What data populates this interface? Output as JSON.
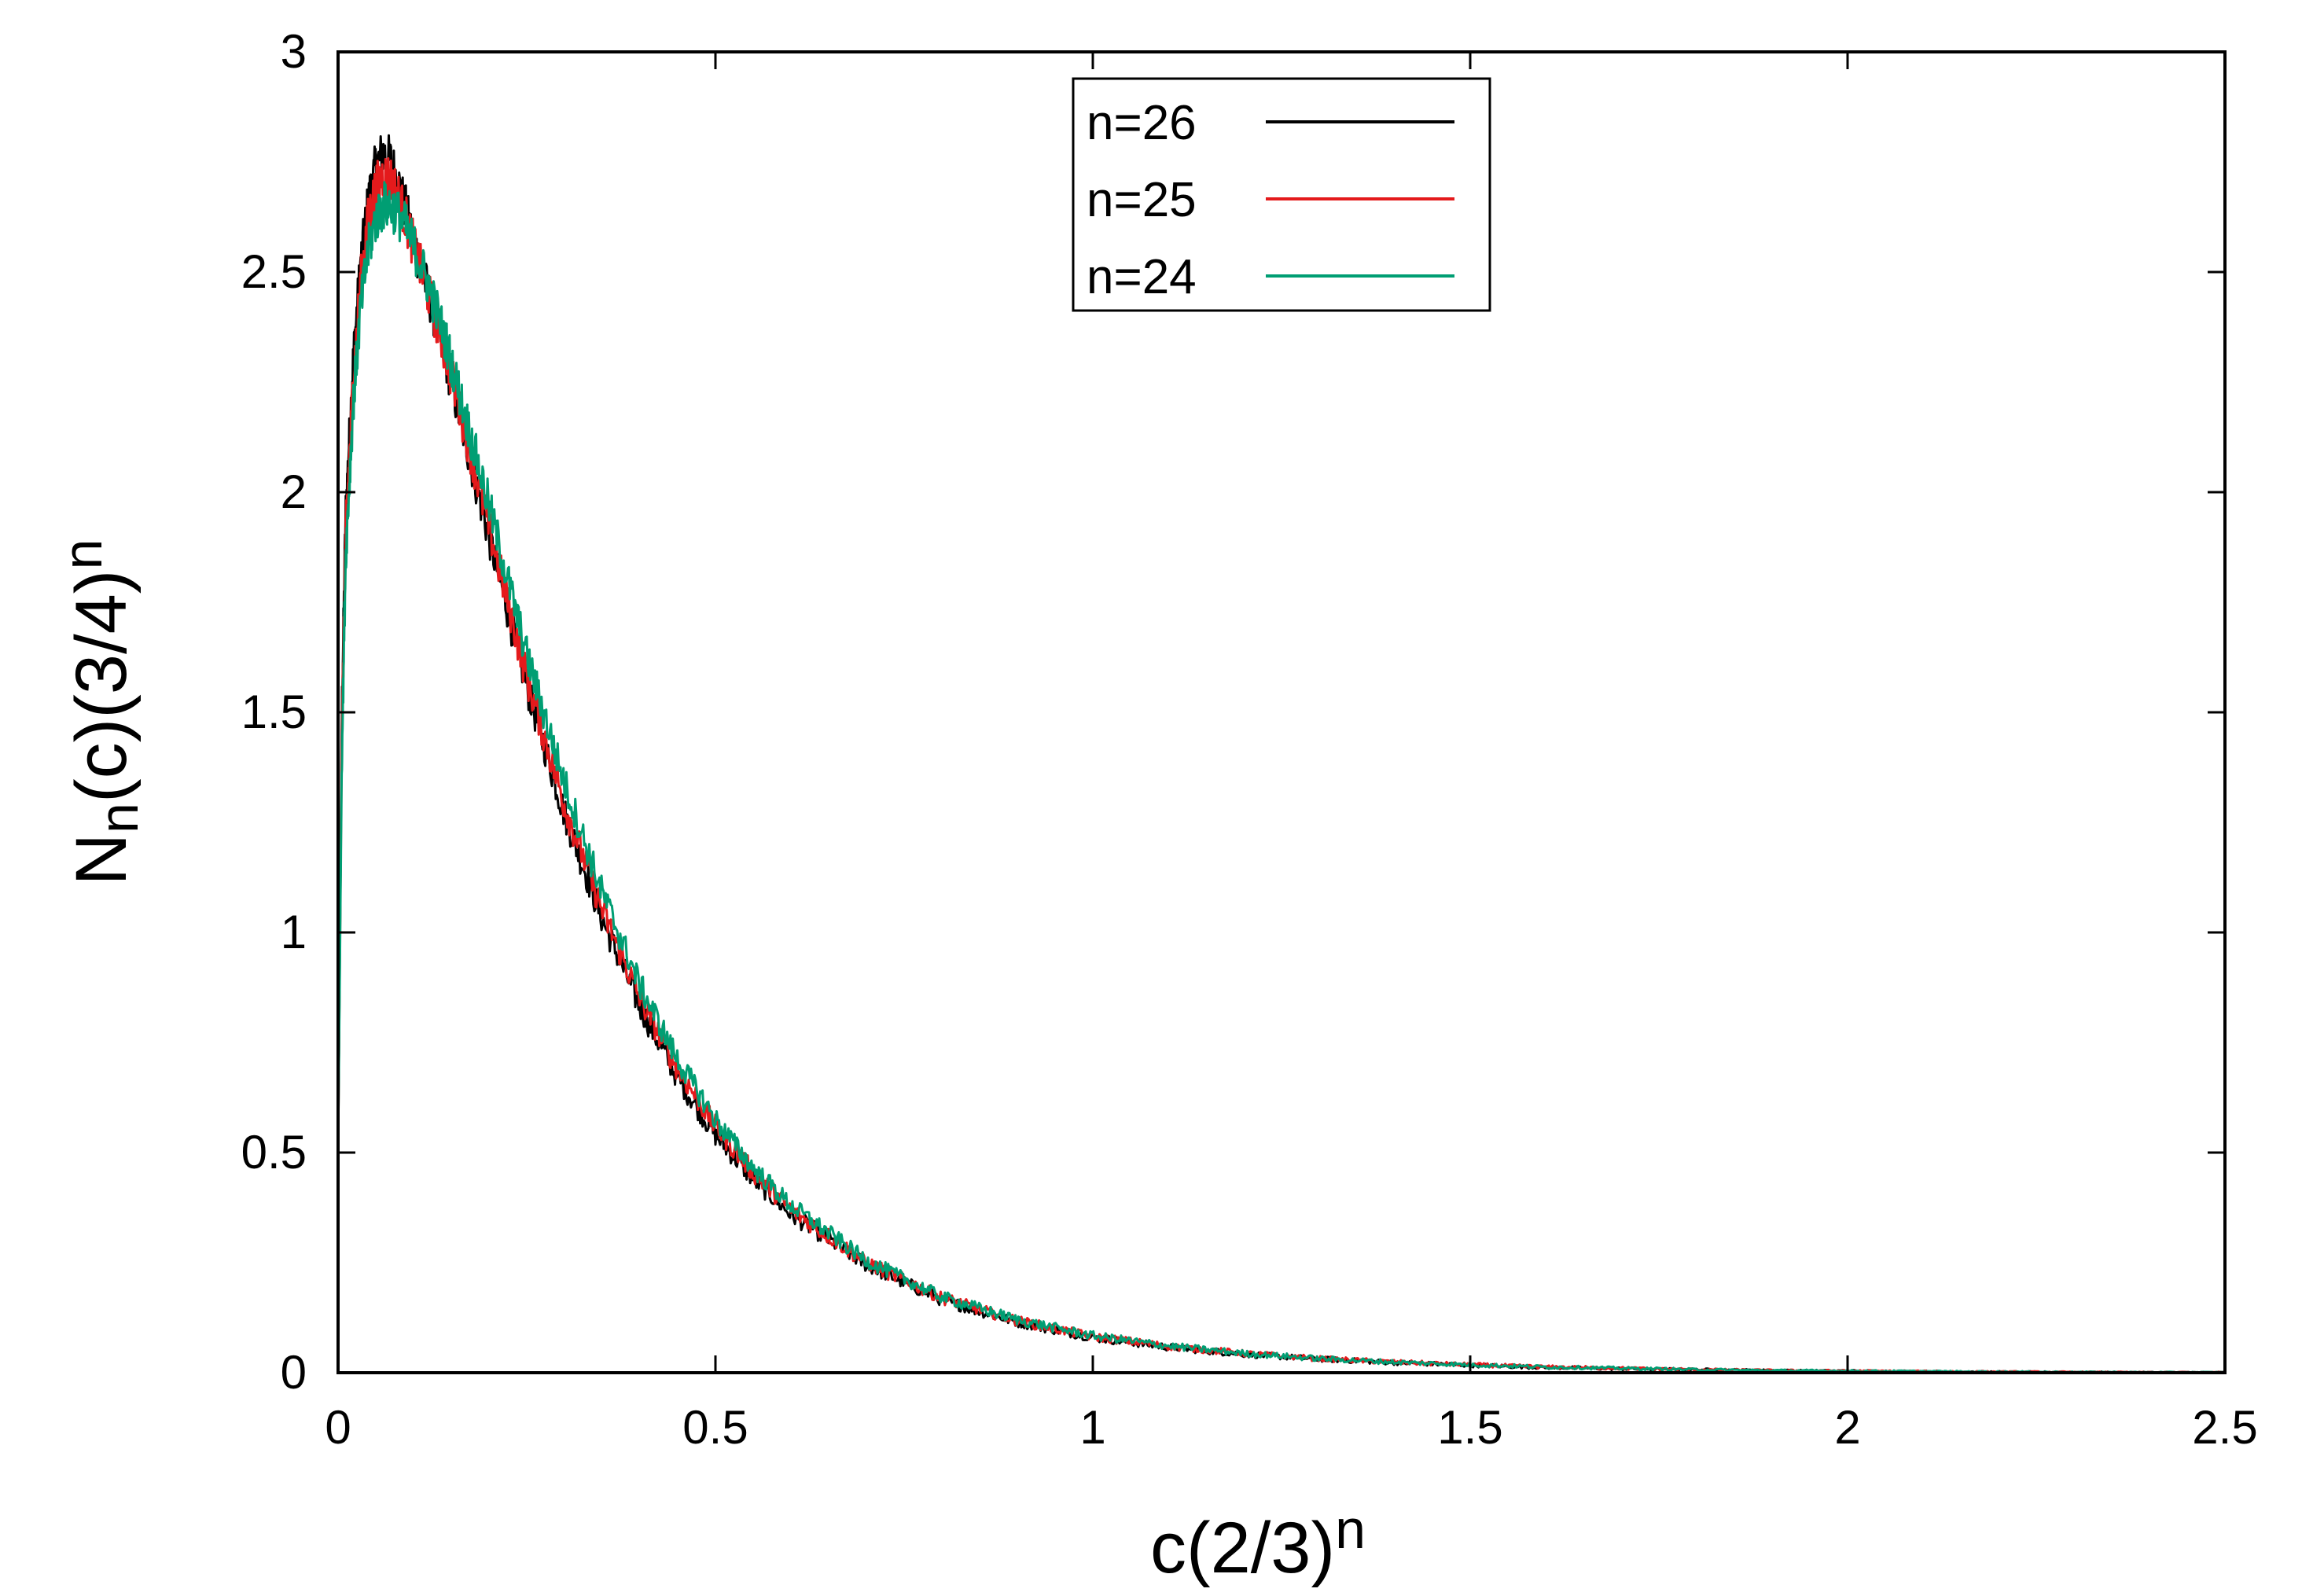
{
  "chart_data": {
    "type": "line",
    "xlabel": {
      "base": "c(2/3)",
      "sup": "n"
    },
    "ylabel": {
      "base": "N",
      "sub": "n",
      "mid": "(c)(3/4)",
      "sup": "n"
    },
    "xlim": [
      0,
      2.5
    ],
    "ylim": [
      0,
      3
    ],
    "xticks": [
      {
        "v": 0,
        "label": "0"
      },
      {
        "v": 0.5,
        "label": "0.5"
      },
      {
        "v": 1,
        "label": "1"
      },
      {
        "v": 1.5,
        "label": "1.5"
      },
      {
        "v": 2,
        "label": "2"
      },
      {
        "v": 2.5,
        "label": "2.5"
      }
    ],
    "yticks": [
      {
        "v": 0,
        "label": "0"
      },
      {
        "v": 0.5,
        "label": "0.5"
      },
      {
        "v": 1,
        "label": "1"
      },
      {
        "v": 1.5,
        "label": "1.5"
      },
      {
        "v": 2,
        "label": "2"
      },
      {
        "v": 2.5,
        "label": "2.5"
      },
      {
        "v": 3,
        "label": "3"
      }
    ],
    "grid": false,
    "legend_position": "top-center",
    "series": [
      {
        "name": "n=26",
        "color": "#000000",
        "x": [
          0,
          0.005,
          0.01,
          0.02,
          0.03,
          0.04,
          0.05,
          0.06,
          0.07,
          0.08,
          0.09,
          0.1,
          0.12,
          0.14,
          0.16,
          0.18,
          0.2,
          0.25,
          0.3,
          0.35,
          0.4,
          0.45,
          0.5,
          0.55,
          0.6,
          0.7,
          0.8,
          0.9,
          1.0,
          1.1,
          1.2,
          1.3,
          1.4,
          1.5,
          1.6,
          1.7,
          1.8,
          1.9,
          2.0,
          2.1,
          2.2,
          2.3,
          2.4,
          2.5
        ],
        "y": [
          0.5,
          1.5,
          1.95,
          2.3,
          2.52,
          2.66,
          2.74,
          2.77,
          2.75,
          2.7,
          2.64,
          2.57,
          2.45,
          2.32,
          2.18,
          2.04,
          1.9,
          1.56,
          1.27,
          1.03,
          0.83,
          0.67,
          0.54,
          0.44,
          0.36,
          0.245,
          0.165,
          0.115,
          0.08,
          0.058,
          0.042,
          0.031,
          0.023,
          0.017,
          0.012,
          0.009,
          0.007,
          0.005,
          0.004,
          0.003,
          0.002,
          0.0015,
          0.001,
          0.001
        ]
      },
      {
        "name": "n=25",
        "color": "#e41a1c",
        "x": [
          0,
          0.005,
          0.01,
          0.02,
          0.03,
          0.04,
          0.05,
          0.06,
          0.07,
          0.08,
          0.09,
          0.1,
          0.12,
          0.14,
          0.16,
          0.18,
          0.2,
          0.25,
          0.3,
          0.35,
          0.4,
          0.45,
          0.5,
          0.55,
          0.6,
          0.7,
          0.8,
          0.9,
          1.0,
          1.1,
          1.2,
          1.3,
          1.4,
          1.5,
          1.6,
          1.7,
          1.8,
          1.9,
          2.0,
          2.1,
          2.2,
          2.3,
          2.4,
          2.5
        ],
        "y": [
          0.5,
          1.45,
          1.9,
          2.25,
          2.48,
          2.62,
          2.69,
          2.72,
          2.71,
          2.67,
          2.62,
          2.56,
          2.45,
          2.33,
          2.2,
          2.06,
          1.92,
          1.58,
          1.29,
          1.05,
          0.85,
          0.69,
          0.56,
          0.455,
          0.37,
          0.25,
          0.17,
          0.118,
          0.082,
          0.06,
          0.044,
          0.032,
          0.024,
          0.018,
          0.013,
          0.01,
          0.007,
          0.005,
          0.004,
          0.003,
          0.002,
          0.0015,
          0.001,
          0.001
        ]
      },
      {
        "name": "n=24",
        "color": "#009e73",
        "x": [
          0,
          0.005,
          0.01,
          0.02,
          0.03,
          0.04,
          0.05,
          0.06,
          0.07,
          0.08,
          0.09,
          0.1,
          0.12,
          0.14,
          0.16,
          0.18,
          0.2,
          0.25,
          0.3,
          0.35,
          0.4,
          0.45,
          0.5,
          0.55,
          0.6,
          0.7,
          0.8,
          0.9,
          1.0,
          1.1,
          1.2,
          1.3,
          1.4,
          1.5,
          1.6,
          1.7,
          1.8,
          1.9,
          2.0,
          2.1,
          2.2,
          2.3,
          2.4,
          2.5
        ],
        "y": [
          0.5,
          1.4,
          1.85,
          2.2,
          2.42,
          2.55,
          2.62,
          2.65,
          2.65,
          2.63,
          2.6,
          2.56,
          2.47,
          2.36,
          2.23,
          2.1,
          1.97,
          1.63,
          1.34,
          1.09,
          0.88,
          0.71,
          0.575,
          0.465,
          0.38,
          0.255,
          0.172,
          0.12,
          0.084,
          0.061,
          0.044,
          0.032,
          0.024,
          0.018,
          0.013,
          0.01,
          0.007,
          0.005,
          0.004,
          0.003,
          0.002,
          0.0015,
          0.001,
          0.001
        ]
      }
    ]
  }
}
